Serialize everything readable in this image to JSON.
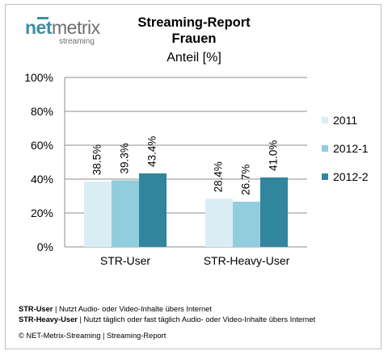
{
  "logo": {
    "net": "net",
    "metrix": "metrix",
    "sub": "streaming"
  },
  "chart_data": {
    "type": "bar",
    "title": "Streaming-Report",
    "subtitle": "Frauen",
    "ylabel": "Anteil [%]",
    "xlabel": "",
    "categories": [
      "STR-User",
      "STR-Heavy-User"
    ],
    "series": [
      {
        "name": "2011",
        "values": [
          38.5,
          28.4
        ],
        "labels": [
          "38.5%",
          "28.4%"
        ],
        "color": "#daedf4"
      },
      {
        "name": "2012-1",
        "values": [
          39.3,
          26.7
        ],
        "labels": [
          "39.3%",
          "26.7%"
        ],
        "color": "#92cddd"
      },
      {
        "name": "2012-2",
        "values": [
          43.4,
          41.0
        ],
        "labels": [
          "43.4%",
          "41.0%"
        ],
        "color": "#31859c"
      }
    ],
    "ylim": [
      0,
      100
    ],
    "yticks": [
      0,
      20,
      40,
      60,
      80,
      100
    ],
    "yticklabels": [
      "0%",
      "20%",
      "40%",
      "60%",
      "80%",
      "100%"
    ],
    "grid": true,
    "legend": "right"
  },
  "notes": [
    {
      "term": "STR-User",
      "text": " | Nutzt Audio- oder Video-Inhalte übers Internet"
    },
    {
      "term": "STR-Heavy-User",
      "text": " | Nutzt täglich oder fast täglich Audio- oder Video-Inhalte übers Internet"
    }
  ],
  "copyright": "© NET-Metrix-Streaming | Streaming-Report"
}
